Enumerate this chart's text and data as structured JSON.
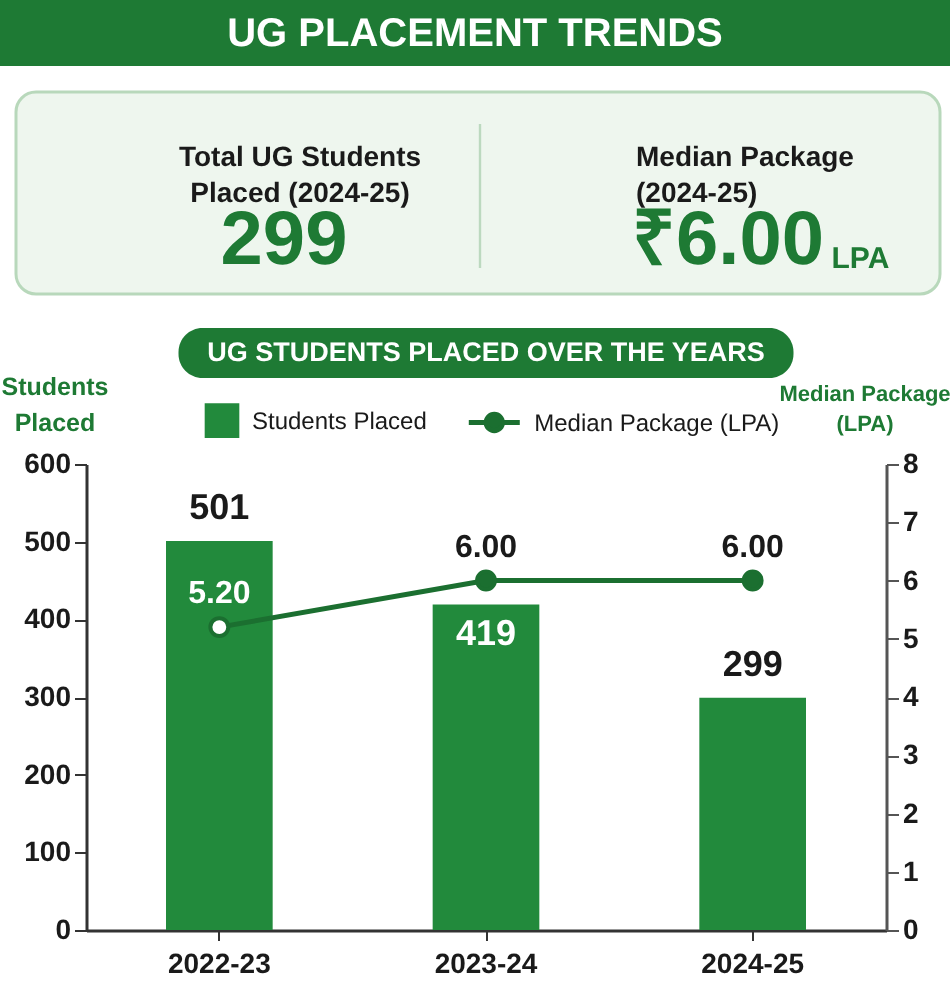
{
  "chart_data": [
    {
      "type": "other",
      "title": "UG PLACEMENT TRENDS",
      "annotations": [
        "Total UG Students Placed (2024-25)",
        "299",
        "Median Package (2024-25)",
        "₹6.00",
        "LPA"
      ]
    },
    {
      "type": "bar",
      "title": "UG STUDENTS PLACED OVER THE YEARS",
      "categories": [
        "2022-23",
        "2023-24",
        "2024-25"
      ],
      "series": [
        {
          "name": "Students Placed",
          "color": "#228a3c",
          "values": [
            501,
            419,
            299
          ],
          "value_labels": [
            "501",
            "419",
            "299"
          ]
        },
        {
          "name": "Median Package (LPA)",
          "type": "line",
          "axis": "y2",
          "color": "#1b6f30",
          "values": [
            5.2,
            6.0,
            6.0
          ],
          "value_labels": [
            "5.20",
            "6.00",
            "6.00"
          ]
        }
      ],
      "ylabel": "Students Placed",
      "y2label": "Median Package (LPA)",
      "ylim": [
        0,
        600
      ],
      "yticks": [
        0,
        100,
        200,
        300,
        400,
        500,
        600
      ],
      "y2lim": [
        0,
        8
      ],
      "y2ticks": [
        0,
        1,
        2,
        3,
        4,
        5,
        6,
        7,
        8
      ],
      "legend": "top",
      "grid": false,
      "marker": "circle",
      "line_style": "solid"
    }
  ]
}
